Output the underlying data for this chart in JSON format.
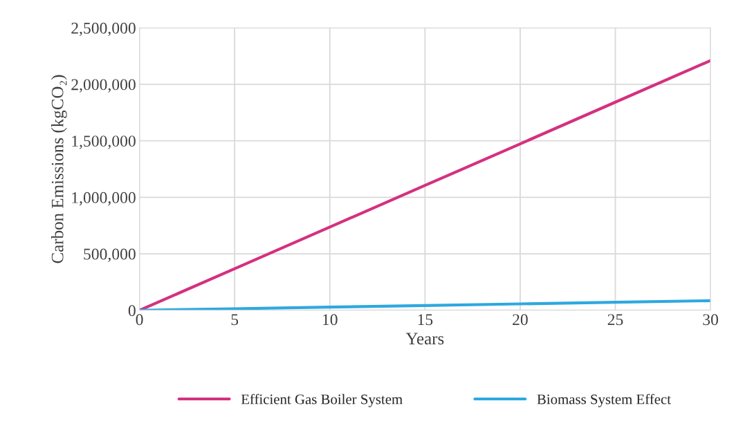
{
  "chart_data": {
    "type": "line",
    "xlabel": "Years",
    "ylabel": "Carbon Emissions (kgCO₂)",
    "x": [
      0,
      5,
      10,
      15,
      20,
      25,
      30
    ],
    "series": [
      {
        "name": "Efficient Gas Boiler System",
        "color": "#d4317f",
        "values": [
          0,
          368000,
          737000,
          1105000,
          1473000,
          1842000,
          2210000
        ]
      },
      {
        "name": "Biomass System Effect",
        "color": "#2ea8e0",
        "values": [
          0,
          14000,
          28000,
          42000,
          57000,
          71000,
          85000
        ]
      }
    ],
    "xlim": [
      0,
      30
    ],
    "xticks": [
      0,
      5,
      10,
      15,
      20,
      25,
      30
    ],
    "ylim": [
      0,
      2500000
    ],
    "yticks": [
      {
        "value": 0,
        "label": "0"
      },
      {
        "value": 500000,
        "label": "500,000"
      },
      {
        "value": 1000000,
        "label": "1,000,000"
      },
      {
        "value": 1500000,
        "label": "1,500,000"
      },
      {
        "value": 2000000,
        "label": "2,000,000"
      },
      {
        "value": 2500000,
        "label": "2,500,000"
      }
    ],
    "grid": true,
    "legend": "bottom",
    "marker": "none",
    "line_style": "solid"
  }
}
